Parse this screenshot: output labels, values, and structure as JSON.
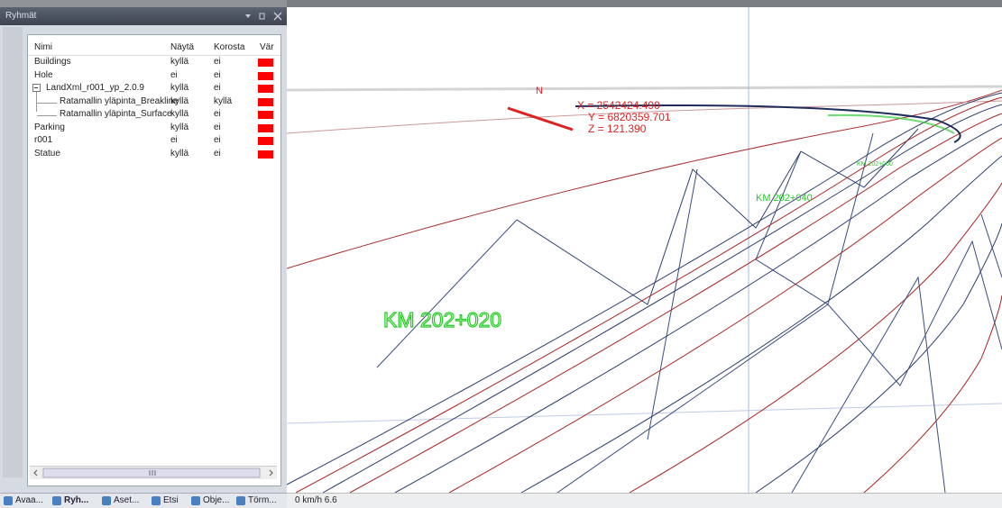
{
  "window": {
    "title": "Ryhmät"
  },
  "table": {
    "columns": [
      "Nimi",
      "Näytä",
      "Korosta",
      "Vär"
    ],
    "rows": [
      [
        "Buildings",
        "kyllä",
        "ei"
      ],
      [
        "Hole",
        "ei",
        "ei"
      ],
      [
        "LandXml_r001_yp_2.0.9",
        "kyllä",
        "ei"
      ],
      [
        "Ratamallin yläpinta_Breakline",
        "kyllä",
        "kyllä"
      ],
      [
        "Ratamallin yläpinta_Surface",
        "kyllä",
        "ei"
      ],
      [
        "Parking",
        "kyllä",
        "ei"
      ],
      [
        "r001",
        "ei",
        "ei"
      ],
      [
        "Statue",
        "kyllä",
        "ei"
      ]
    ]
  },
  "tabs": [
    "Avaa...",
    "Ryh...",
    "Aset...",
    "Etsi",
    "Obje...",
    "Törm..."
  ],
  "viewport": {
    "north": "N",
    "x_coord": "X = 2542424.490",
    "y_coord": "Y = 6820359.701",
    "z_coord": "Z = 121.390",
    "stations": [
      "KM 202+020",
      "KM 202+040",
      "KM 202+060"
    ]
  },
  "status": "0 km/h 6.6"
}
